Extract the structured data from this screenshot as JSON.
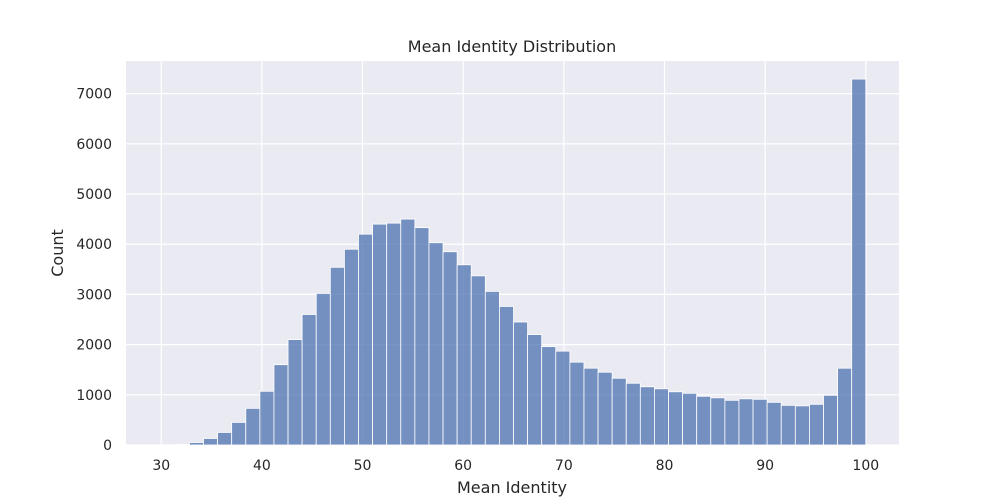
{
  "chart_data": {
    "type": "bar",
    "title": "Mean Identity Distribution",
    "xlabel": "Mean Identity",
    "ylabel": "Count",
    "xlim": [
      26.5,
      103.3
    ],
    "ylim": [
      0,
      7650
    ],
    "x_ticks": [
      30,
      40,
      50,
      60,
      70,
      80,
      90,
      100
    ],
    "y_ticks": [
      0,
      1000,
      2000,
      3000,
      4000,
      5000,
      6000,
      7000
    ],
    "grid": true,
    "colors": {
      "bar": "#4c72b0",
      "background": "#eaeaf2",
      "grid": "#ffffff"
    },
    "bin_start": 30.0,
    "bin_width": 1.4,
    "counts": [
      0,
      10,
      50,
      130,
      250,
      450,
      730,
      1070,
      1600,
      2100,
      2600,
      3020,
      3540,
      3900,
      4200,
      4400,
      4420,
      4500,
      4330,
      4030,
      3850,
      3590,
      3370,
      3060,
      2760,
      2450,
      2200,
      1960,
      1870,
      1650,
      1530,
      1450,
      1330,
      1230,
      1160,
      1120,
      1060,
      1030,
      970,
      940,
      890,
      920,
      910,
      850,
      790,
      780,
      810,
      990,
      1530,
      7290
    ]
  }
}
